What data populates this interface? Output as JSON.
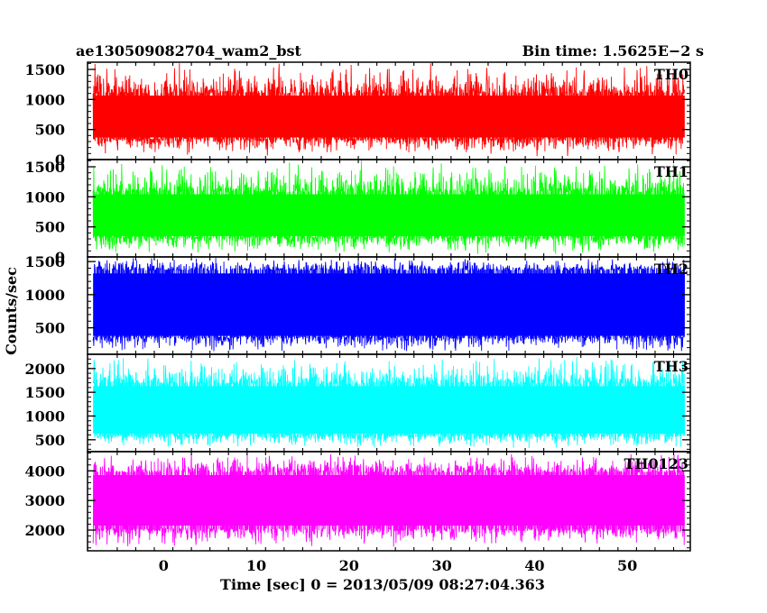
{
  "header": {
    "title": "ae130509082704_wam2_bst",
    "bin_time": "Bin time: 1.5625E−2 s"
  },
  "chart_data": {
    "type": "line",
    "xlabel": "Time [sec] 0 = 2013/05/09 08:27:04.363",
    "ylabel": "Counts/sec",
    "xlim": [
      -8.2,
      56.8
    ],
    "x_ticks": [
      0,
      10,
      20,
      30,
      40,
      50
    ],
    "data_range": [
      -7.6,
      56.2
    ],
    "panels": [
      {
        "name": "TH0",
        "color": "#ff0000",
        "ylim": [
          0,
          1620
        ],
        "y_ticks": [
          0,
          500,
          1000,
          1500
        ],
        "mean": 660,
        "low": 350,
        "high": 1100,
        "spike_max": 1620,
        "dip_min": 50
      },
      {
        "name": "TH1",
        "color": "#00ff00",
        "ylim": [
          0,
          1620
        ],
        "y_ticks": [
          0,
          500,
          1000,
          1500
        ],
        "mean": 620,
        "low": 330,
        "high": 1080,
        "spike_max": 1620,
        "dip_min": 40
      },
      {
        "name": "TH2",
        "color": "#0000ff",
        "ylim": [
          100,
          1570
        ],
        "y_ticks": [
          500,
          1000,
          1500
        ],
        "mean": 760,
        "low": 360,
        "high": 1370,
        "spike_max": 1570,
        "dip_min": 120
      },
      {
        "name": "TH3",
        "color": "#00ffff",
        "ylim": [
          250,
          2300
        ],
        "y_ticks": [
          500,
          1000,
          1500,
          2000
        ],
        "mean": 1040,
        "low": 600,
        "high": 1680,
        "spike_max": 2300,
        "dip_min": 320
      },
      {
        "name": "TH0123",
        "color": "#ff00ff",
        "ylim": [
          1300,
          4650
        ],
        "y_ticks": [
          2000,
          3000,
          4000
        ],
        "mean": 2800,
        "low": 2050,
        "high": 3950,
        "spike_max": 4650,
        "dip_min": 1420
      }
    ]
  }
}
